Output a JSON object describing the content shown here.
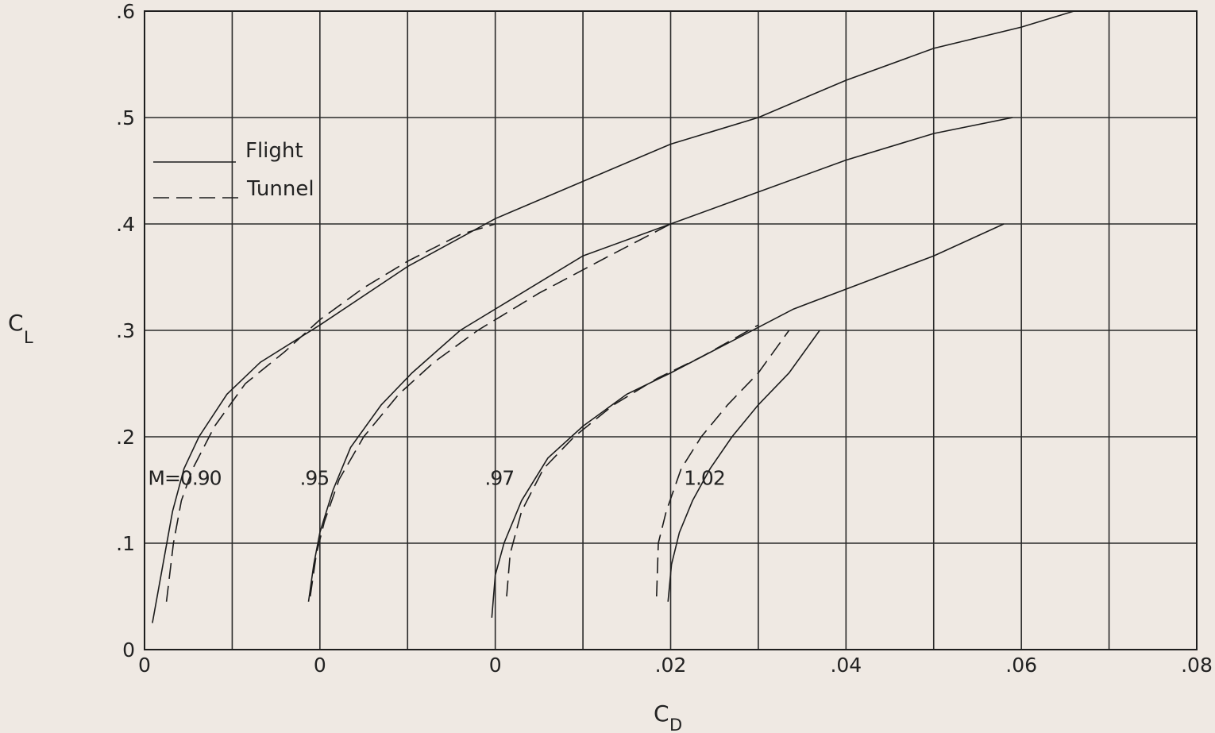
{
  "chart_data": {
    "type": "line",
    "title": "",
    "xlabel": "C",
    "xlabel_subscript": "D",
    "ylabel": "C",
    "ylabel_subscript": "L",
    "xlim": [
      -0.04,
      0.08
    ],
    "ylim": [
      0,
      0.6
    ],
    "grid": true,
    "legend_position": "upper-left",
    "yticks": [
      0,
      0.1,
      0.2,
      0.3,
      0.4,
      0.5,
      0.6
    ],
    "ytick_labels": [
      "0",
      ".1",
      ".2",
      ".3",
      ".4",
      ".5",
      ".6"
    ],
    "xticks": [
      -0.04,
      -0.02,
      0,
      0.02,
      0.04,
      0.06,
      0.08
    ],
    "xtick_labels": [
      "0",
      "0",
      "0",
      ".02",
      ".04",
      ".06",
      ".08"
    ],
    "legend": [
      {
        "name": "Flight",
        "style": "solid"
      },
      {
        "name": "Tunnel",
        "style": "dashed"
      }
    ],
    "curve_labels": [
      {
        "text": "M=0.90",
        "x": -0.0396,
        "y": 0.155
      },
      {
        "text": ".95",
        "x": -0.0223,
        "y": 0.155
      },
      {
        "text": ".97",
        "x": -0.0012,
        "y": 0.155
      },
      {
        "text": "1.02",
        "x": 0.0215,
        "y": 0.155
      }
    ],
    "series": [
      {
        "name": "Flight",
        "mach": "M=0.90",
        "style": "solid",
        "points": [
          [
            -0.0391,
            0.025
          ],
          [
            -0.0379,
            0.08
          ],
          [
            -0.0368,
            0.13
          ],
          [
            -0.0355,
            0.17
          ],
          [
            -0.0338,
            0.2
          ],
          [
            -0.0306,
            0.24
          ],
          [
            -0.0268,
            0.27
          ],
          [
            -0.02,
            0.305
          ],
          [
            -0.01,
            0.36
          ],
          [
            0.0,
            0.405
          ],
          [
            0.01,
            0.44
          ],
          [
            0.02,
            0.475
          ],
          [
            0.03,
            0.5
          ],
          [
            0.04,
            0.535
          ],
          [
            0.05,
            0.565
          ],
          [
            0.06,
            0.585
          ],
          [
            0.066,
            0.6
          ]
        ]
      },
      {
        "name": "Tunnel",
        "mach": "M=0.90",
        "style": "dashed",
        "points": [
          [
            -0.0375,
            0.045
          ],
          [
            -0.0367,
            0.1
          ],
          [
            -0.0358,
            0.14
          ],
          [
            -0.0345,
            0.17
          ],
          [
            -0.032,
            0.21
          ],
          [
            -0.0285,
            0.25
          ],
          [
            -0.024,
            0.28
          ],
          [
            -0.02,
            0.31
          ],
          [
            -0.015,
            0.34
          ],
          [
            -0.01,
            0.365
          ],
          [
            -0.004,
            0.39
          ],
          [
            0.0,
            0.4
          ]
        ]
      },
      {
        "name": "Flight",
        "mach": ".95",
        "style": "solid",
        "points": [
          [
            -0.0213,
            0.045
          ],
          [
            -0.0207,
            0.08
          ],
          [
            -0.02,
            0.11
          ],
          [
            -0.0185,
            0.15
          ],
          [
            -0.0165,
            0.19
          ],
          [
            -0.013,
            0.23
          ],
          [
            -0.0095,
            0.26
          ],
          [
            -0.004,
            0.3
          ],
          [
            0.002,
            0.33
          ],
          [
            0.01,
            0.37
          ],
          [
            0.02,
            0.4
          ],
          [
            0.03,
            0.43
          ],
          [
            0.04,
            0.46
          ],
          [
            0.05,
            0.485
          ],
          [
            0.059,
            0.5
          ]
        ]
      },
      {
        "name": "Tunnel",
        "mach": ".95",
        "style": "dashed",
        "points": [
          [
            -0.0211,
            0.05
          ],
          [
            -0.0204,
            0.09
          ],
          [
            -0.0195,
            0.12
          ],
          [
            -0.0178,
            0.16
          ],
          [
            -0.015,
            0.2
          ],
          [
            -0.011,
            0.24
          ],
          [
            -0.007,
            0.27
          ],
          [
            -0.002,
            0.3
          ],
          [
            0.005,
            0.335
          ],
          [
            0.013,
            0.37
          ],
          [
            0.02,
            0.4
          ]
        ]
      },
      {
        "name": "Flight",
        "mach": ".97",
        "style": "solid",
        "points": [
          [
            -0.0004,
            0.03
          ],
          [
            0.0,
            0.07
          ],
          [
            0.001,
            0.1
          ],
          [
            0.003,
            0.14
          ],
          [
            0.006,
            0.18
          ],
          [
            0.01,
            0.21
          ],
          [
            0.015,
            0.24
          ],
          [
            0.02,
            0.26
          ],
          [
            0.027,
            0.29
          ],
          [
            0.034,
            0.32
          ],
          [
            0.042,
            0.345
          ],
          [
            0.05,
            0.37
          ],
          [
            0.058,
            0.4
          ]
        ]
      },
      {
        "name": "Tunnel",
        "mach": ".97",
        "style": "dashed",
        "points": [
          [
            0.0013,
            0.05
          ],
          [
            0.0017,
            0.09
          ],
          [
            0.003,
            0.13
          ],
          [
            0.0055,
            0.17
          ],
          [
            0.009,
            0.2
          ],
          [
            0.0135,
            0.23
          ],
          [
            0.0185,
            0.255
          ],
          [
            0.0235,
            0.275
          ],
          [
            0.03,
            0.305
          ]
        ]
      },
      {
        "name": "Flight",
        "mach": "1.02",
        "style": "solid",
        "points": [
          [
            0.0197,
            0.045
          ],
          [
            0.0201,
            0.08
          ],
          [
            0.021,
            0.11
          ],
          [
            0.0225,
            0.14
          ],
          [
            0.0245,
            0.17
          ],
          [
            0.027,
            0.2
          ],
          [
            0.03,
            0.23
          ],
          [
            0.0335,
            0.26
          ],
          [
            0.037,
            0.3
          ]
        ]
      },
      {
        "name": "Tunnel",
        "mach": "1.02",
        "style": "dashed",
        "points": [
          [
            0.0184,
            0.05
          ],
          [
            0.0186,
            0.1
          ],
          [
            0.0195,
            0.13
          ],
          [
            0.0212,
            0.17
          ],
          [
            0.0235,
            0.2
          ],
          [
            0.0265,
            0.23
          ],
          [
            0.03,
            0.26
          ],
          [
            0.0335,
            0.3
          ]
        ]
      }
    ]
  }
}
